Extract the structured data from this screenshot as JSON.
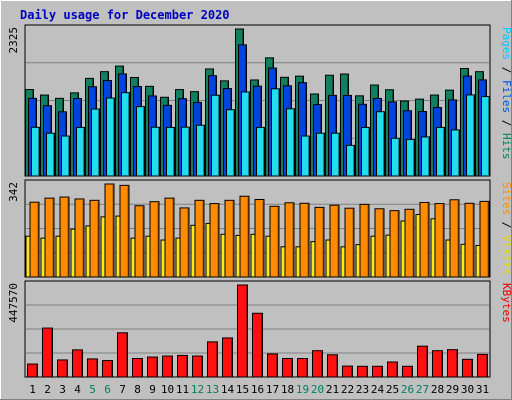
{
  "chart_data": {
    "type": "bar",
    "title": "Daily usage for December 2020",
    "categories": [
      "1",
      "2",
      "3",
      "4",
      "5",
      "6",
      "7",
      "8",
      "9",
      "10",
      "11",
      "12",
      "13",
      "14",
      "15",
      "16",
      "17",
      "18",
      "19",
      "20",
      "21",
      "22",
      "23",
      "24",
      "25",
      "26",
      "27",
      "28",
      "29",
      "30",
      "31"
    ],
    "weekend_days": [
      5,
      6,
      12,
      13,
      19,
      20,
      26,
      27
    ],
    "panels": [
      {
        "name": "hits-files-pages",
        "ymax_label": "2325",
        "ymax": 2325,
        "right_label": [
          {
            "text": "Pages",
            "color": "#00c8ff"
          },
          {
            "text": " / ",
            "color": "#000000"
          },
          {
            "text": "Files",
            "color": "#0050e0"
          },
          {
            "text": " / ",
            "color": "#000000"
          },
          {
            "text": "Hits",
            "color": "#00805a"
          }
        ],
        "series": [
          {
            "name": "Hits",
            "color": "#128060",
            "values": [
              1367,
              1280,
              1228,
              1315,
              1544,
              1650,
              1738,
              1558,
              1418,
              1245,
              1367,
              1334,
              1693,
              1505,
              2325,
              1519,
              1869,
              1561,
              1579,
              1297,
              1594,
              1613,
              1268,
              1439,
              1364,
              1186,
              1216,
              1280,
              1358,
              1700,
              1650
            ]
          },
          {
            "name": "Files",
            "color": "#0044e0",
            "values": [
              1228,
              1112,
              1015,
              1226,
              1412,
              1510,
              1615,
              1414,
              1266,
              1118,
              1223,
              1164,
              1586,
              1383,
              2074,
              1421,
              1707,
              1427,
              1476,
              1130,
              1275,
              1274,
              1134,
              1227,
              1172,
              1032,
              1020,
              1083,
              1203,
              1580,
              1520
            ]
          },
          {
            "name": "Pages",
            "color": "#22ddee",
            "values": [
              770,
              677,
              632,
              768,
              1059,
              1233,
              1318,
              1097,
              771,
              768,
              772,
              803,
              1277,
              1048,
              1329,
              768,
              1379,
              1063,
              632,
              677,
              677,
              484,
              768,
              1017,
              596,
              576,
              618,
              768,
              729,
              1282,
              1256
            ]
          }
        ]
      },
      {
        "name": "sites-visits",
        "ymax_label": "342",
        "ymax": 342,
        "right_label": [
          {
            "text": "Sites",
            "color": "#ff8c00"
          },
          {
            "text": " / ",
            "color": "#000000"
          },
          {
            "text": "Visits",
            "color": "#e8d800"
          }
        ],
        "series": [
          {
            "name": "Visits",
            "color": "#ffe81a",
            "values": [
              150,
              143,
              150,
              176,
              188,
              221,
              224,
              143,
              150,
              136,
              143,
              190,
              197,
              157,
              153,
              157,
              150,
              111,
              111,
              130,
              136,
              111,
              119,
              150,
              154,
              206,
              230,
              214,
              136,
              120,
              116
            ]
          },
          {
            "name": "Sites",
            "color": "#ff8c00",
            "values": [
              275,
              290,
              294,
              287,
              282,
              342,
              337,
              262,
              277,
              290,
              254,
              282,
              270,
              282,
              297,
              285,
              260,
              273,
              271,
              256,
              264,
              253,
              267,
              251,
              244,
              249,
              274,
              270,
              284,
              271,
              278
            ]
          }
        ]
      },
      {
        "name": "kbytes",
        "ymax_label": "447570",
        "ymax": 447570,
        "right_label": [
          {
            "text": "KBytes",
            "color": "#e80000"
          }
        ],
        "series": [
          {
            "name": "KBytes",
            "color": "#ff1010",
            "values": [
              63000,
              238000,
              83000,
              132000,
              88000,
              80000,
              215000,
              90000,
              97000,
              102000,
              105000,
              102000,
              171000,
              190000,
              447570,
              310000,
              112000,
              90000,
              90000,
              128000,
              108000,
              53000,
              52000,
              52000,
              73000,
              52000,
              150000,
              128000,
              133000,
              86000,
              110000
            ]
          }
        ]
      }
    ]
  }
}
